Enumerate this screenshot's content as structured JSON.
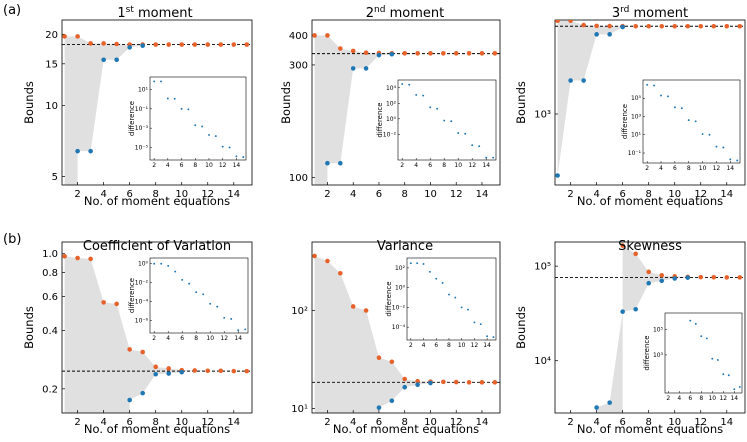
{
  "figure_labels": {
    "a": "(a)",
    "b": "(b)"
  },
  "colors": {
    "upper": "#e6622a",
    "lower": "#1f77b4",
    "band": "#e0e0e0",
    "inset_points": "#1f77b4"
  },
  "chart_data": [
    {
      "type": "scatter",
      "title": "1st moment",
      "title_base": "1",
      "title_sup": "st",
      "title_rest": " moment",
      "xlabel": "No. of moment equations",
      "ylabel": "Bounds",
      "ylog": true,
      "xlim": [
        0.8,
        15.4
      ],
      "ylim": [
        4.6,
        23
      ],
      "x_ticks": [
        2,
        4,
        6,
        8,
        10,
        12,
        14
      ],
      "y_ticks": [
        5,
        10,
        15,
        20
      ],
      "y_tick_labels": [
        "5",
        "10",
        "15",
        "20"
      ],
      "reference_line": 18.1,
      "upper": {
        "x": [
          1,
          2,
          3,
          4,
          5,
          6,
          7,
          8,
          9,
          10,
          11,
          12,
          13,
          14,
          15
        ],
        "y": [
          19.6,
          19.6,
          18.3,
          18.3,
          18.2,
          18.1,
          18.1,
          18.1,
          18.1,
          18.1,
          18.1,
          18.1,
          18.1,
          18.1,
          18.1
        ]
      },
      "lower": {
        "x": [
          2,
          3,
          4,
          5,
          6,
          7
        ],
        "y": [
          6.4,
          6.4,
          15.6,
          15.6,
          17.6,
          17.9
        ]
      },
      "inset": {
        "ylabel": "difference",
        "x": [
          2,
          3,
          4,
          5,
          6,
          7,
          8,
          9,
          10,
          11,
          12,
          13,
          14,
          15
        ],
        "y": [
          70.0,
          70.0,
          1.2,
          1.1,
          0.1,
          0.09,
          0.002,
          0.0015,
          0.0002,
          0.00015,
          1.2e-05,
          1e-05,
          1.2e-06,
          1e-06
        ],
        "x_ticks": [
          2,
          4,
          6,
          8,
          10,
          12,
          14
        ],
        "ylim": [
          5e-07,
          200.0
        ],
        "y_ticks": [
          10.0,
          0.1,
          0.001,
          1e-05
        ],
        "y_tick_labels": [
          "10¹",
          "10⁻¹",
          "10⁻³",
          "10⁻⁵"
        ]
      }
    },
    {
      "type": "scatter",
      "title": "2nd moment",
      "title_base": "2",
      "title_sup": "nd",
      "title_rest": " moment",
      "xlabel": "",
      "ylabel": "Bounds",
      "ylog": true,
      "xlim": [
        0.8,
        15.4
      ],
      "ylim": [
        93,
        465
      ],
      "x_ticks": [
        2,
        4,
        6,
        8,
        10,
        12,
        14
      ],
      "y_ticks": [
        100,
        300,
        400
      ],
      "y_tick_labels": [
        "100",
        "300",
        "400"
      ],
      "reference_line": 335,
      "upper": {
        "x": [
          1,
          2,
          3,
          4,
          5,
          6,
          7,
          8,
          9,
          10,
          11,
          12,
          13,
          14,
          15
        ],
        "y": [
          400,
          400,
          352,
          344,
          338,
          337,
          336,
          336,
          336,
          336,
          336,
          336,
          336,
          336,
          336
        ]
      },
      "lower": {
        "x": [
          2,
          3,
          4,
          5,
          6,
          7
        ],
        "y": [
          115,
          115,
          290,
          290,
          330,
          333
        ]
      },
      "inset": {
        "ylabel": "difference",
        "x": [
          2,
          3,
          4,
          5,
          6,
          7,
          8,
          9,
          10,
          11,
          12,
          13,
          14,
          15
        ],
        "y": [
          30000.0,
          25000.0,
          1200.0,
          1000.0,
          30.0,
          20.0,
          0.6,
          0.5,
          0.015,
          0.012,
          0.0004,
          0.0003,
          1e-05,
          1e-05
        ],
        "x_ticks": [
          2,
          4,
          6,
          8,
          10,
          12,
          14
        ],
        "ylim": [
          5e-06,
          100000.0
        ],
        "y_ticks": [
          10000.0,
          100.0,
          1.0,
          0.01
        ],
        "y_tick_labels": [
          "10⁴",
          "10²",
          "10⁰",
          "10⁻²"
        ]
      }
    },
    {
      "type": "scatter",
      "title": "3rd moment",
      "title_base": "3",
      "title_sup": "rd",
      "title_rest": " moment",
      "xlabel": "No. of moment equations",
      "ylabel": "Bounds",
      "ylog": true,
      "xlim": [
        0.8,
        15.4
      ],
      "ylim": [
        230,
        7000
      ],
      "x_ticks": [
        2,
        4,
        6,
        8,
        10,
        12,
        14
      ],
      "y_ticks": [
        1000
      ],
      "y_tick_labels": [
        "10³"
      ],
      "reference_line": 6150,
      "upper": {
        "x": [
          1,
          2,
          3,
          4,
          5,
          6,
          7,
          8,
          9,
          10,
          11,
          12,
          13,
          14,
          15
        ],
        "y": [
          6900,
          6900,
          6300,
          6200,
          6170,
          6160,
          6150,
          6150,
          6150,
          6150,
          6150,
          6150,
          6150,
          6150,
          6150
        ]
      },
      "lower": {
        "x": [
          1,
          2,
          3,
          4,
          5,
          6
        ],
        "y": [
          280,
          2000,
          2000,
          5200,
          5200,
          6050
        ]
      },
      "inset": {
        "ylabel": "difference",
        "x": [
          2,
          3,
          4,
          5,
          6,
          7,
          8,
          9,
          10,
          11,
          12,
          13,
          14,
          15
        ],
        "y": [
          3000000.0,
          2500000.0,
          200000.0,
          160000.0,
          10000.0,
          8000.0,
          400.0,
          300.0,
          12.0,
          10.0,
          0.5,
          0.4,
          0.02,
          0.015
        ],
        "x_ticks": [
          2,
          4,
          6,
          8,
          10,
          12,
          14
        ],
        "ylim": [
          0.008,
          10000000.0
        ],
        "y_ticks": [
          100000.0,
          1000.0,
          10.0,
          0.1
        ],
        "y_tick_labels": [
          "10⁵",
          "10³",
          "10¹",
          "10⁻¹"
        ]
      }
    },
    {
      "type": "scatter",
      "title": "Coefficient of Variation",
      "xlabel": "No. of moment equations",
      "ylabel": "Bounds",
      "ylog": true,
      "xlim": [
        0.8,
        15.4
      ],
      "ylim": [
        0.15,
        1.15
      ],
      "x_ticks": [
        2,
        4,
        6,
        8,
        10,
        12,
        14
      ],
      "y_ticks": [
        0.2,
        0.4,
        0.6,
        0.8,
        1.0
      ],
      "y_tick_labels": [
        "0.2",
        "0.4",
        "0.6",
        "0.8",
        "1.0"
      ],
      "reference_line": 0.247,
      "upper": {
        "x": [
          1,
          2,
          3,
          4,
          5,
          6,
          7,
          8,
          9,
          10,
          11,
          12,
          13,
          14,
          15
        ],
        "y": [
          0.97,
          0.95,
          0.94,
          0.56,
          0.55,
          0.32,
          0.31,
          0.26,
          0.255,
          0.25,
          0.249,
          0.248,
          0.248,
          0.247,
          0.247
        ]
      },
      "lower": {
        "x": [
          6,
          7,
          8,
          9,
          10
        ],
        "y": [
          0.175,
          0.19,
          0.238,
          0.24,
          0.244
        ]
      },
      "inset": {
        "ylabel": "difference",
        "x": [
          2,
          3,
          4,
          5,
          6,
          7,
          8,
          9,
          10,
          11,
          12,
          13,
          14,
          15
        ],
        "y": [
          1.0,
          1.0,
          0.6,
          0.15,
          0.02,
          0.008,
          0.001,
          0.0006,
          6e-05,
          3e-05,
          2e-06,
          1.5e-06,
          1e-07,
          1.2e-07
        ],
        "x_ticks": [
          2,
          4,
          6,
          8,
          10,
          12,
          14
        ],
        "ylim": [
          5e-08,
          4.0
        ],
        "y_ticks": [
          1.0,
          0.01,
          0.0001,
          1e-06
        ],
        "y_tick_labels": [
          "10⁰",
          "10⁻²",
          "10⁻⁴",
          "10⁻⁶"
        ]
      }
    },
    {
      "type": "scatter",
      "title": "Variance",
      "xlabel": "No. of moment equations",
      "ylabel": "",
      "ylog": true,
      "xlim": [
        0.8,
        15.4
      ],
      "ylim": [
        9,
        500
      ],
      "x_ticks": [
        2,
        4,
        6,
        8,
        10,
        12,
        14
      ],
      "y_ticks": [
        10,
        100
      ],
      "y_tick_labels": [
        "10¹",
        "10²"
      ],
      "reference_line": 18.5,
      "upper": {
        "x": [
          1,
          2,
          3,
          4,
          5,
          6,
          7,
          8,
          9,
          10,
          11,
          12,
          13,
          14,
          15
        ],
        "y": [
          360,
          320,
          240,
          110,
          100,
          33,
          30,
          20,
          19,
          18.8,
          18.7,
          18.6,
          18.5,
          18.5,
          18.5
        ]
      },
      "lower": {
        "x": [
          6,
          7,
          8,
          9,
          10
        ],
        "y": [
          10.2,
          12,
          16.5,
          17.5,
          18.2
        ]
      },
      "inset": {
        "ylabel": "difference",
        "x": [
          2,
          3,
          4,
          5,
          6,
          7,
          8,
          9,
          10,
          11,
          12,
          13,
          14,
          15
        ],
        "y": [
          300.0,
          300.0,
          250.0,
          40.0,
          8.0,
          3.0,
          0.2,
          0.1,
          0.01,
          0.006,
          0.0003,
          0.0002,
          1.2e-05,
          1e-05
        ],
        "x_ticks": [
          2,
          4,
          6,
          8,
          10,
          12,
          14
        ],
        "ylim": [
          5e-06,
          1000.0
        ],
        "y_ticks": [
          100.0,
          1.0,
          0.01,
          0.0001
        ],
        "y_tick_labels": [
          "10²",
          "10⁰",
          "10⁻²",
          "10⁻⁴"
        ]
      }
    },
    {
      "type": "scatter",
      "title": "Skewness",
      "xlabel": "No. of moment equations",
      "ylabel": "Bounds",
      "ylog": true,
      "xlim": [
        0.8,
        15.4
      ],
      "ylim": [
        2800,
        180000
      ],
      "x_ticks": [
        2,
        4,
        6,
        8,
        10,
        12,
        14
      ],
      "y_ticks": [
        10000,
        100000
      ],
      "y_tick_labels": [
        "10⁴",
        "10⁵"
      ],
      "reference_line": 76000,
      "upper": {
        "x": [
          6,
          7,
          8,
          9,
          10,
          11,
          12,
          13,
          14,
          15
        ],
        "y": [
          165000,
          135000,
          87000,
          80000,
          78000,
          77000,
          76500,
          76200,
          76000,
          76000
        ]
      },
      "lower": {
        "x": [
          4,
          5,
          6,
          7,
          8,
          9,
          10,
          11
        ],
        "y": [
          3200,
          3600,
          33000,
          35000,
          66000,
          70000,
          74000,
          75500
        ]
      },
      "inset": {
        "ylabel": "difference",
        "x": [
          6,
          7,
          8,
          9,
          10,
          11,
          12,
          13,
          14,
          15
        ],
        "y": [
          500000.0,
          280000.0,
          30000.0,
          20000.0,
          500.0,
          400.0,
          30.0,
          25.0,
          2.0,
          3.0
        ],
        "x_ticks": [
          2,
          4,
          6,
          8,
          10,
          12,
          14
        ],
        "ylim": [
          1.0,
          2000000.0
        ],
        "y_ticks": [
          100000.0,
          1000.0
        ],
        "y_tick_labels": [
          "10⁵",
          "10³"
        ]
      }
    }
  ]
}
